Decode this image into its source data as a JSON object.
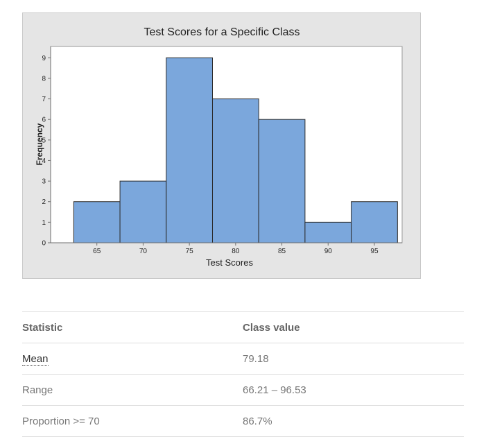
{
  "chart_data": {
    "type": "bar",
    "title": "Test Scores for a Specific Class",
    "xlabel": "Test Scores",
    "ylabel": "Frequency",
    "bin_width": 5,
    "bins": [
      {
        "center": 65,
        "count": 2
      },
      {
        "center": 70,
        "count": 3
      },
      {
        "center": 75,
        "count": 9
      },
      {
        "center": 80,
        "count": 7
      },
      {
        "center": 85,
        "count": 6
      },
      {
        "center": 90,
        "count": 1
      },
      {
        "center": 95,
        "count": 2
      }
    ],
    "xticks": [
      65,
      70,
      75,
      80,
      85,
      90,
      95
    ],
    "yticks": [
      0,
      1,
      2,
      3,
      4,
      5,
      6,
      7,
      8,
      9
    ],
    "xlim": [
      60,
      98
    ],
    "ylim": [
      0,
      9.55
    ],
    "grid": false,
    "colors": {
      "bar_fill": "#7ba7dc",
      "bar_stroke": "#2b2b2b",
      "frame_bg": "#e5e5e5",
      "plot_bg": "#ffffff"
    }
  },
  "table": {
    "headers": [
      "Statistic",
      "Class value"
    ],
    "rows": [
      {
        "statistic": "Mean",
        "value": "79.18"
      },
      {
        "statistic": "Range",
        "value": "66.21 – 96.53"
      },
      {
        "statistic": "Proportion >= 70",
        "value": "86.7%"
      }
    ]
  }
}
